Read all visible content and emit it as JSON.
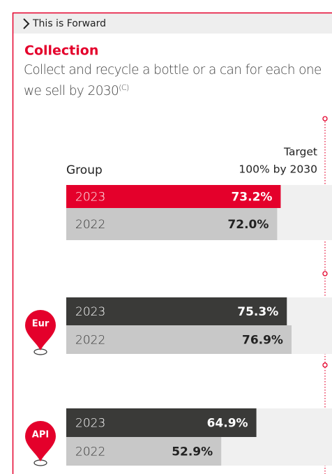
{
  "header": {
    "title": "This is Forward"
  },
  "heading": "Collection",
  "description": {
    "text": "Collect and recycle a bottle or a can for each one we sell by 2030",
    "footnote": "(C)"
  },
  "target": {
    "label": "Target",
    "text": "100% by 2030"
  },
  "chart_data": [
    {
      "type": "bar",
      "title": "Group",
      "categories": [
        "2023",
        "2022"
      ],
      "values": [
        73.2,
        72.0
      ],
      "value_labels": [
        "73.2%",
        "72.0%"
      ],
      "colors": [
        "#e4002b",
        "#c8c8c8"
      ],
      "xlim": [
        0,
        100
      ]
    },
    {
      "type": "bar",
      "title": "Eur",
      "categories": [
        "2023",
        "2022"
      ],
      "values": [
        75.3,
        76.9
      ],
      "value_labels": [
        "75.3%",
        "76.9%"
      ],
      "colors": [
        "#3a3a38",
        "#c8c8c8"
      ],
      "xlim": [
        0,
        100
      ]
    },
    {
      "type": "bar",
      "title": "API",
      "categories": [
        "2023",
        "2022"
      ],
      "values": [
        64.9,
        52.9
      ],
      "value_labels": [
        "64.9%",
        "52.9%"
      ],
      "colors": [
        "#3a3a38",
        "#c8c8c8"
      ],
      "xlim": [
        0,
        100
      ]
    }
  ]
}
